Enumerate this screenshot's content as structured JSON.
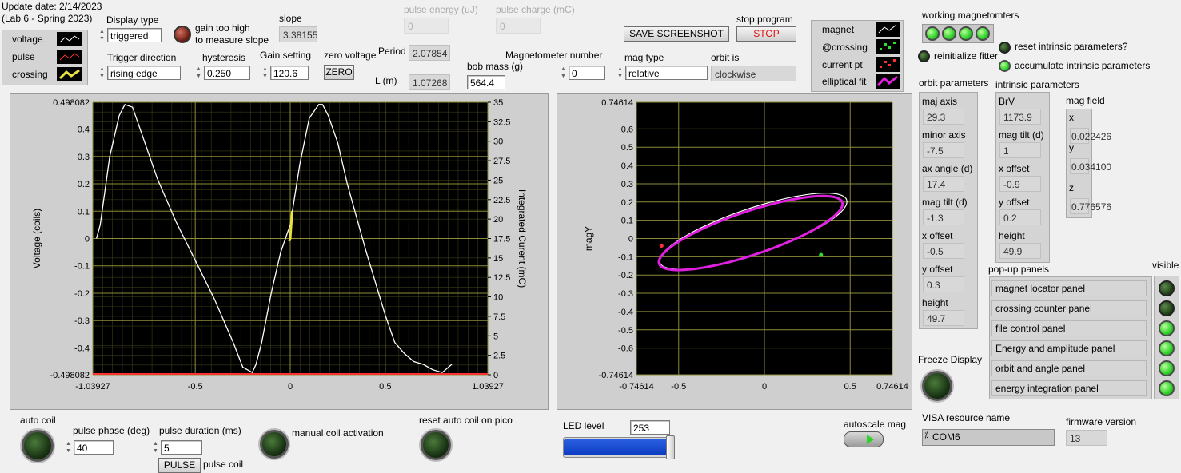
{
  "header": {
    "update_date": "Update date: 2/14/2023",
    "lab": "(Lab 6 - Spring 2023)"
  },
  "legend_left": {
    "items": [
      "voltage",
      "pulse",
      "crossing"
    ]
  },
  "display_type": {
    "label": "Display type",
    "value": "triggered"
  },
  "gain_indicator": {
    "label1": "gain too high",
    "label2": "to measure slope"
  },
  "slope": {
    "label": "slope",
    "value": "3.38155"
  },
  "pulse_energy": {
    "label": "pulse energy (uJ)",
    "value": "0"
  },
  "pulse_charge": {
    "label": "pulse charge (mC)",
    "value": "0"
  },
  "trigger_direction": {
    "label": "Trigger direction",
    "value": "rising edge"
  },
  "hysteresis": {
    "label": "hysteresis",
    "value": "0.250"
  },
  "gain_setting": {
    "label": "Gain setting",
    "value": "120.6"
  },
  "zero_voltage": {
    "label": "zero voltage",
    "button": "ZERO"
  },
  "period": {
    "label": "Period",
    "value": "2.07854"
  },
  "length": {
    "label": "L (m)",
    "value": "1.07268"
  },
  "bob_mass": {
    "label": "bob mass (g)",
    "value": "564.4"
  },
  "magnetometer_number": {
    "label": "Magnetometer number",
    "value": "0"
  },
  "mag_type": {
    "label": "mag type",
    "value": "relative"
  },
  "orbit_is": {
    "label": "orbit is",
    "value": "clockwise"
  },
  "save_screenshot": {
    "label": "SAVE SCREENSHOT"
  },
  "stop_program": {
    "label": "stop program",
    "button": "STOP"
  },
  "legend_right": {
    "items": [
      "magnet",
      "@crossing",
      "current pt",
      "elliptical fit"
    ]
  },
  "working_magnetometers": {
    "label": "working magnetomters",
    "count": 4
  },
  "reinitialize": {
    "label": "reinitialize fitter"
  },
  "reset_intrinsic": {
    "label": "reset intrinsic parameters?"
  },
  "accumulate_intrinsic": {
    "label": "accumulate intrinsic parameters"
  },
  "orbit_parameters": {
    "title": "orbit parameters",
    "items": [
      {
        "label": "maj axis",
        "value": "29.3"
      },
      {
        "label": "minor axis",
        "value": "-7.5"
      },
      {
        "label": "ax angle (d)",
        "value": "17.4"
      },
      {
        "label": "mag  tilt (d)",
        "value": "-1.3"
      },
      {
        "label": "x offset",
        "value": "-0.5"
      },
      {
        "label": "y offset",
        "value": "0.3"
      },
      {
        "label": "height",
        "value": "49.7"
      }
    ]
  },
  "intrinsic_parameters": {
    "title": "intrinsic parameters",
    "items": [
      {
        "label": "BrV",
        "value": "1173.9"
      },
      {
        "label": "mag tilt (d)",
        "value": "1"
      },
      {
        "label": "x offset",
        "value": "-0.9"
      },
      {
        "label": "y offset",
        "value": "0.2"
      },
      {
        "label": "height",
        "value": "49.9"
      }
    ]
  },
  "mag_field": {
    "title": "mag field",
    "items": [
      {
        "label": "x",
        "value": "0.022426"
      },
      {
        "label": "y",
        "value": "0.034100"
      },
      {
        "label": "z",
        "value": "0.776576"
      }
    ]
  },
  "popup_panels": {
    "title": "pop-up panels",
    "visible_label": "visible",
    "items": [
      {
        "label": "magnet locator panel",
        "visible": false
      },
      {
        "label": "crossing counter panel",
        "visible": false
      },
      {
        "label": "file control panel",
        "visible": true
      },
      {
        "label": "Energy and amplitude panel",
        "visible": true
      },
      {
        "label": "orbit and angle panel",
        "visible": true
      },
      {
        "label": "energy integration panel",
        "visible": true
      }
    ]
  },
  "freeze_display": {
    "label": "Freeze Display"
  },
  "auto_coil": {
    "label": "auto coil"
  },
  "pulse_phase": {
    "label": "pulse phase (deg)",
    "value": "40"
  },
  "pulse_duration": {
    "label": "pulse duration (ms)",
    "value": "5"
  },
  "pulse_button": {
    "label": "PULSE",
    "suffix": "pulse coil"
  },
  "manual_coil": {
    "label": "manual coil activation"
  },
  "reset_auto_coil": {
    "label": "reset auto coil on pico"
  },
  "led_level": {
    "label": "LED level",
    "value": "253",
    "fraction": 0.99
  },
  "autoscale_mag": {
    "label": "autoscale mag"
  },
  "visa": {
    "label": "VISA resource name",
    "value": "COM6"
  },
  "firmware": {
    "label": "firmware version",
    "value": "13"
  },
  "colors": {
    "plot_bg": "#000000",
    "grid": "#8c8c3a",
    "trace": "#ffffff",
    "fit": "#e020e0",
    "crossing": "#e8e040",
    "pulse": "#ff3030"
  },
  "chart_data": [
    {
      "type": "line",
      "xlabel": "",
      "ylabel": "Voltage (coils)",
      "y2label": "Integrated Curent (mC)",
      "xlim": [
        -1.03927,
        1.03927
      ],
      "ylim": [
        -0.498082,
        0.498082
      ],
      "y2lim": [
        0,
        35
      ],
      "x_ticks": [
        "-1.03927",
        "-0.5",
        "0",
        "0.5",
        "1.03927"
      ],
      "y_ticks": [
        "0.498082",
        "0.4",
        "0.3",
        "0.2",
        "0.1",
        "0",
        "-0.1",
        "-0.2",
        "-0.3",
        "-0.4",
        "-0.498082"
      ],
      "y2_ticks": [
        "35",
        "32.5",
        "30",
        "27.5",
        "25",
        "22.5",
        "20",
        "17.5",
        "15",
        "12.5",
        "10",
        "7.5",
        "5",
        "2.5",
        "0"
      ],
      "series": [
        {
          "name": "voltage",
          "x": [
            -1.02,
            -1.0,
            -0.95,
            -0.9,
            -0.87,
            -0.83,
            -0.78,
            -0.7,
            -0.6,
            -0.5,
            -0.4,
            -0.3,
            -0.25,
            -0.2,
            -0.18,
            -0.15,
            -0.1,
            -0.05,
            0.0,
            0.05,
            0.1,
            0.15,
            0.17,
            0.2,
            0.25,
            0.3,
            0.4,
            0.5,
            0.55,
            0.6,
            0.65,
            0.7,
            0.75,
            0.8,
            0.85
          ],
          "y": [
            0.0,
            0.05,
            0.3,
            0.45,
            0.49,
            0.48,
            0.38,
            0.22,
            0.06,
            -0.08,
            -0.22,
            -0.38,
            -0.47,
            -0.49,
            -0.46,
            -0.38,
            -0.2,
            -0.05,
            0.05,
            0.27,
            0.44,
            0.49,
            0.49,
            0.45,
            0.35,
            0.2,
            -0.05,
            -0.28,
            -0.38,
            -0.42,
            -0.45,
            -0.46,
            -0.48,
            -0.49,
            -0.46
          ]
        },
        {
          "name": "crossing",
          "x": [
            -0.005,
            0.0,
            0.01
          ],
          "y": [
            -0.01,
            0.0,
            0.1
          ]
        }
      ]
    },
    {
      "type": "line",
      "xlabel": "",
      "ylabel": "magY",
      "xlim": [
        -0.74614,
        0.74614
      ],
      "ylim": [
        -0.74614,
        0.74614
      ],
      "x_ticks": [
        "-0.74614",
        "-0.5",
        "0",
        "0.5",
        "0.74614"
      ],
      "y_ticks": [
        "0.74614",
        "0.6",
        "0.5",
        "0.4",
        "0.3",
        "0.2",
        "0.1",
        "0",
        "-0.1",
        "-0.2",
        "-0.3",
        "-0.4",
        "-0.5",
        "-0.6",
        "-0.74614"
      ],
      "ellipse": {
        "cx": -0.08,
        "cy": 0.03,
        "a": 0.56,
        "b": 0.12,
        "angle_deg": 17.4
      }
    }
  ]
}
